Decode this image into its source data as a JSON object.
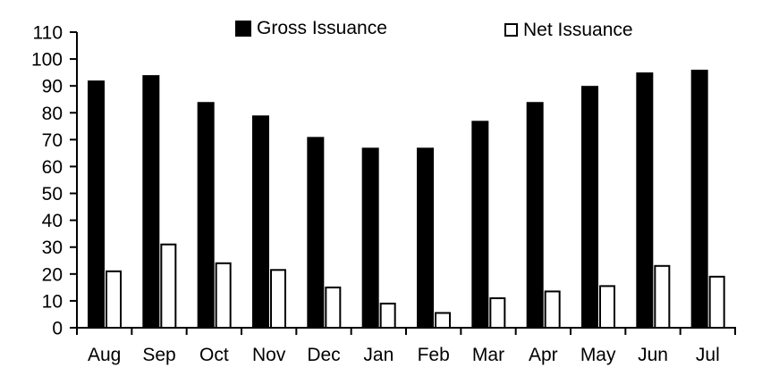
{
  "chart_data": {
    "type": "bar",
    "categories": [
      "Aug",
      "Sep",
      "Oct",
      "Nov",
      "Dec",
      "Jan",
      "Feb",
      "Mar",
      "Apr",
      "May",
      "Jun",
      "Jul"
    ],
    "series": [
      {
        "name": "Gross Issuance",
        "values": [
          92,
          94,
          84,
          79,
          71,
          67,
          67,
          77,
          84,
          90,
          95,
          96
        ],
        "fill": "#000000",
        "stroke": "#000000"
      },
      {
        "name": "Net Issuance",
        "values": [
          21,
          31,
          24,
          21.5,
          15,
          9,
          5.5,
          11,
          13.5,
          15.5,
          23,
          19
        ],
        "fill": "#ffffff",
        "stroke": "#000000"
      }
    ],
    "title": "",
    "xlabel": "",
    "ylabel": "",
    "ylim": [
      0,
      110
    ],
    "yticks": [
      0,
      10,
      20,
      30,
      40,
      50,
      60,
      70,
      80,
      90,
      100,
      110
    ],
    "grid": false,
    "legend_position": "top"
  },
  "legend": {
    "items": [
      {
        "label": "Gross Issuance",
        "swatch": "filled-black-square"
      },
      {
        "label": "Net Issuance",
        "swatch": "open-white-square"
      }
    ]
  },
  "colors": {
    "axis": "#000000",
    "text": "#000000",
    "background": "#ffffff",
    "gross_bar": "#000000",
    "net_bar_fill": "#ffffff",
    "net_bar_outline": "#000000"
  }
}
